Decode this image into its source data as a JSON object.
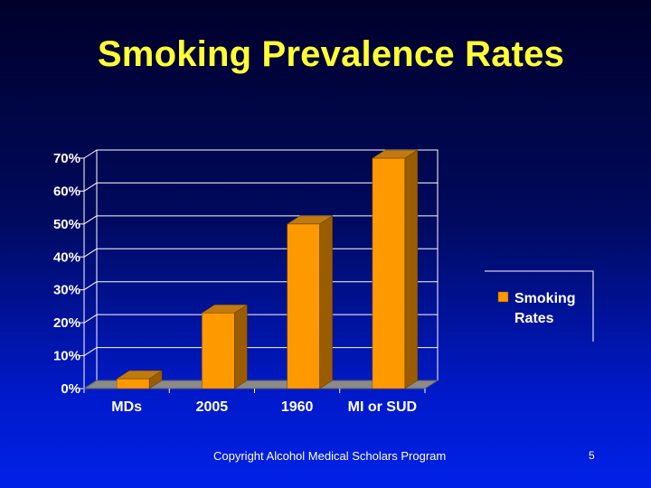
{
  "slide": {
    "title": "Smoking Prevalence Rates",
    "footer": "Copyright Alcohol Medical Scholars Program",
    "page_number": "5"
  },
  "chart_data": {
    "type": "bar",
    "categories": [
      "MDs",
      "2005",
      "1960",
      "MI or SUD"
    ],
    "series": [
      {
        "name": "Smoking Rates",
        "values": [
          3,
          23,
          50,
          70
        ]
      }
    ],
    "yticks": [
      "0%",
      "10%",
      "20%",
      "30%",
      "40%",
      "50%",
      "60%",
      "70%"
    ],
    "ylim": [
      0,
      70
    ],
    "grid": true,
    "three_d": true,
    "legend_position": "right",
    "colors": {
      "bar_front": "#ff9900",
      "bar_side": "#9a5c00",
      "bar_top": "#c07a10",
      "floor": "#8a8a8a",
      "grid": "#ffffff",
      "text": "#ffffff"
    }
  }
}
